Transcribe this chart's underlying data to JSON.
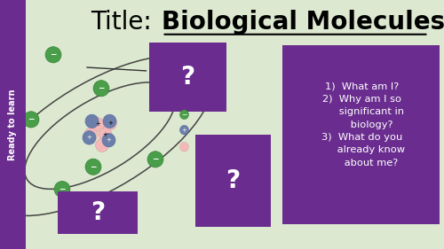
{
  "bg_color": "#dde8d0",
  "purple_color": "#6a2d8f",
  "white_color": "#ffffff",
  "sidebar_text": "Ready to learn",
  "title_plain": "Title: ",
  "title_bold": "Biological Molecules",
  "title_fontsize": 20,
  "green_color": "#4a9e4a",
  "pink_color": "#f5b8b8",
  "blue_gray_color": "#6b7fa8",
  "questions_lines": [
    "1)  What am I?",
    "2)  Why am I so",
    "      significant in",
    "      biology?",
    "3)  What do you",
    "      already know",
    "      about me?"
  ]
}
